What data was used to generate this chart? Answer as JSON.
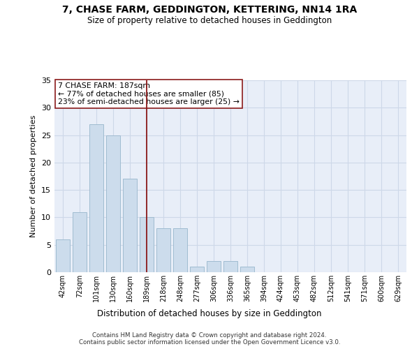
{
  "title1": "7, CHASE FARM, GEDDINGTON, KETTERING, NN14 1RA",
  "title2": "Size of property relative to detached houses in Geddington",
  "xlabel": "Distribution of detached houses by size in Geddington",
  "ylabel": "Number of detached properties",
  "categories": [
    "42sqm",
    "72sqm",
    "101sqm",
    "130sqm",
    "160sqm",
    "189sqm",
    "218sqm",
    "248sqm",
    "277sqm",
    "306sqm",
    "336sqm",
    "365sqm",
    "394sqm",
    "424sqm",
    "453sqm",
    "482sqm",
    "512sqm",
    "541sqm",
    "571sqm",
    "600sqm",
    "629sqm"
  ],
  "values": [
    6,
    11,
    27,
    25,
    17,
    10,
    8,
    8,
    1,
    2,
    2,
    1,
    0,
    0,
    0,
    0,
    0,
    0,
    0,
    0,
    0
  ],
  "bar_color": "#ccdcec",
  "bar_edge_color": "#a0bcd0",
  "vline_x_idx": 5,
  "vline_color": "#8b1a1a",
  "annotation_line1": "7 CHASE FARM: 187sqm",
  "annotation_line2": "← 77% of detached houses are smaller (85)",
  "annotation_line3": "23% of semi-detached houses are larger (25) →",
  "annotation_box_color": "#ffffff",
  "annotation_box_edge_color": "#8b1a1a",
  "ylim": [
    0,
    35
  ],
  "yticks": [
    0,
    5,
    10,
    15,
    20,
    25,
    30,
    35
  ],
  "footnote": "Contains HM Land Registry data © Crown copyright and database right 2024.\nContains public sector information licensed under the Open Government Licence v3.0.",
  "grid_color": "#cdd8e8",
  "background_color": "#e8eef8"
}
